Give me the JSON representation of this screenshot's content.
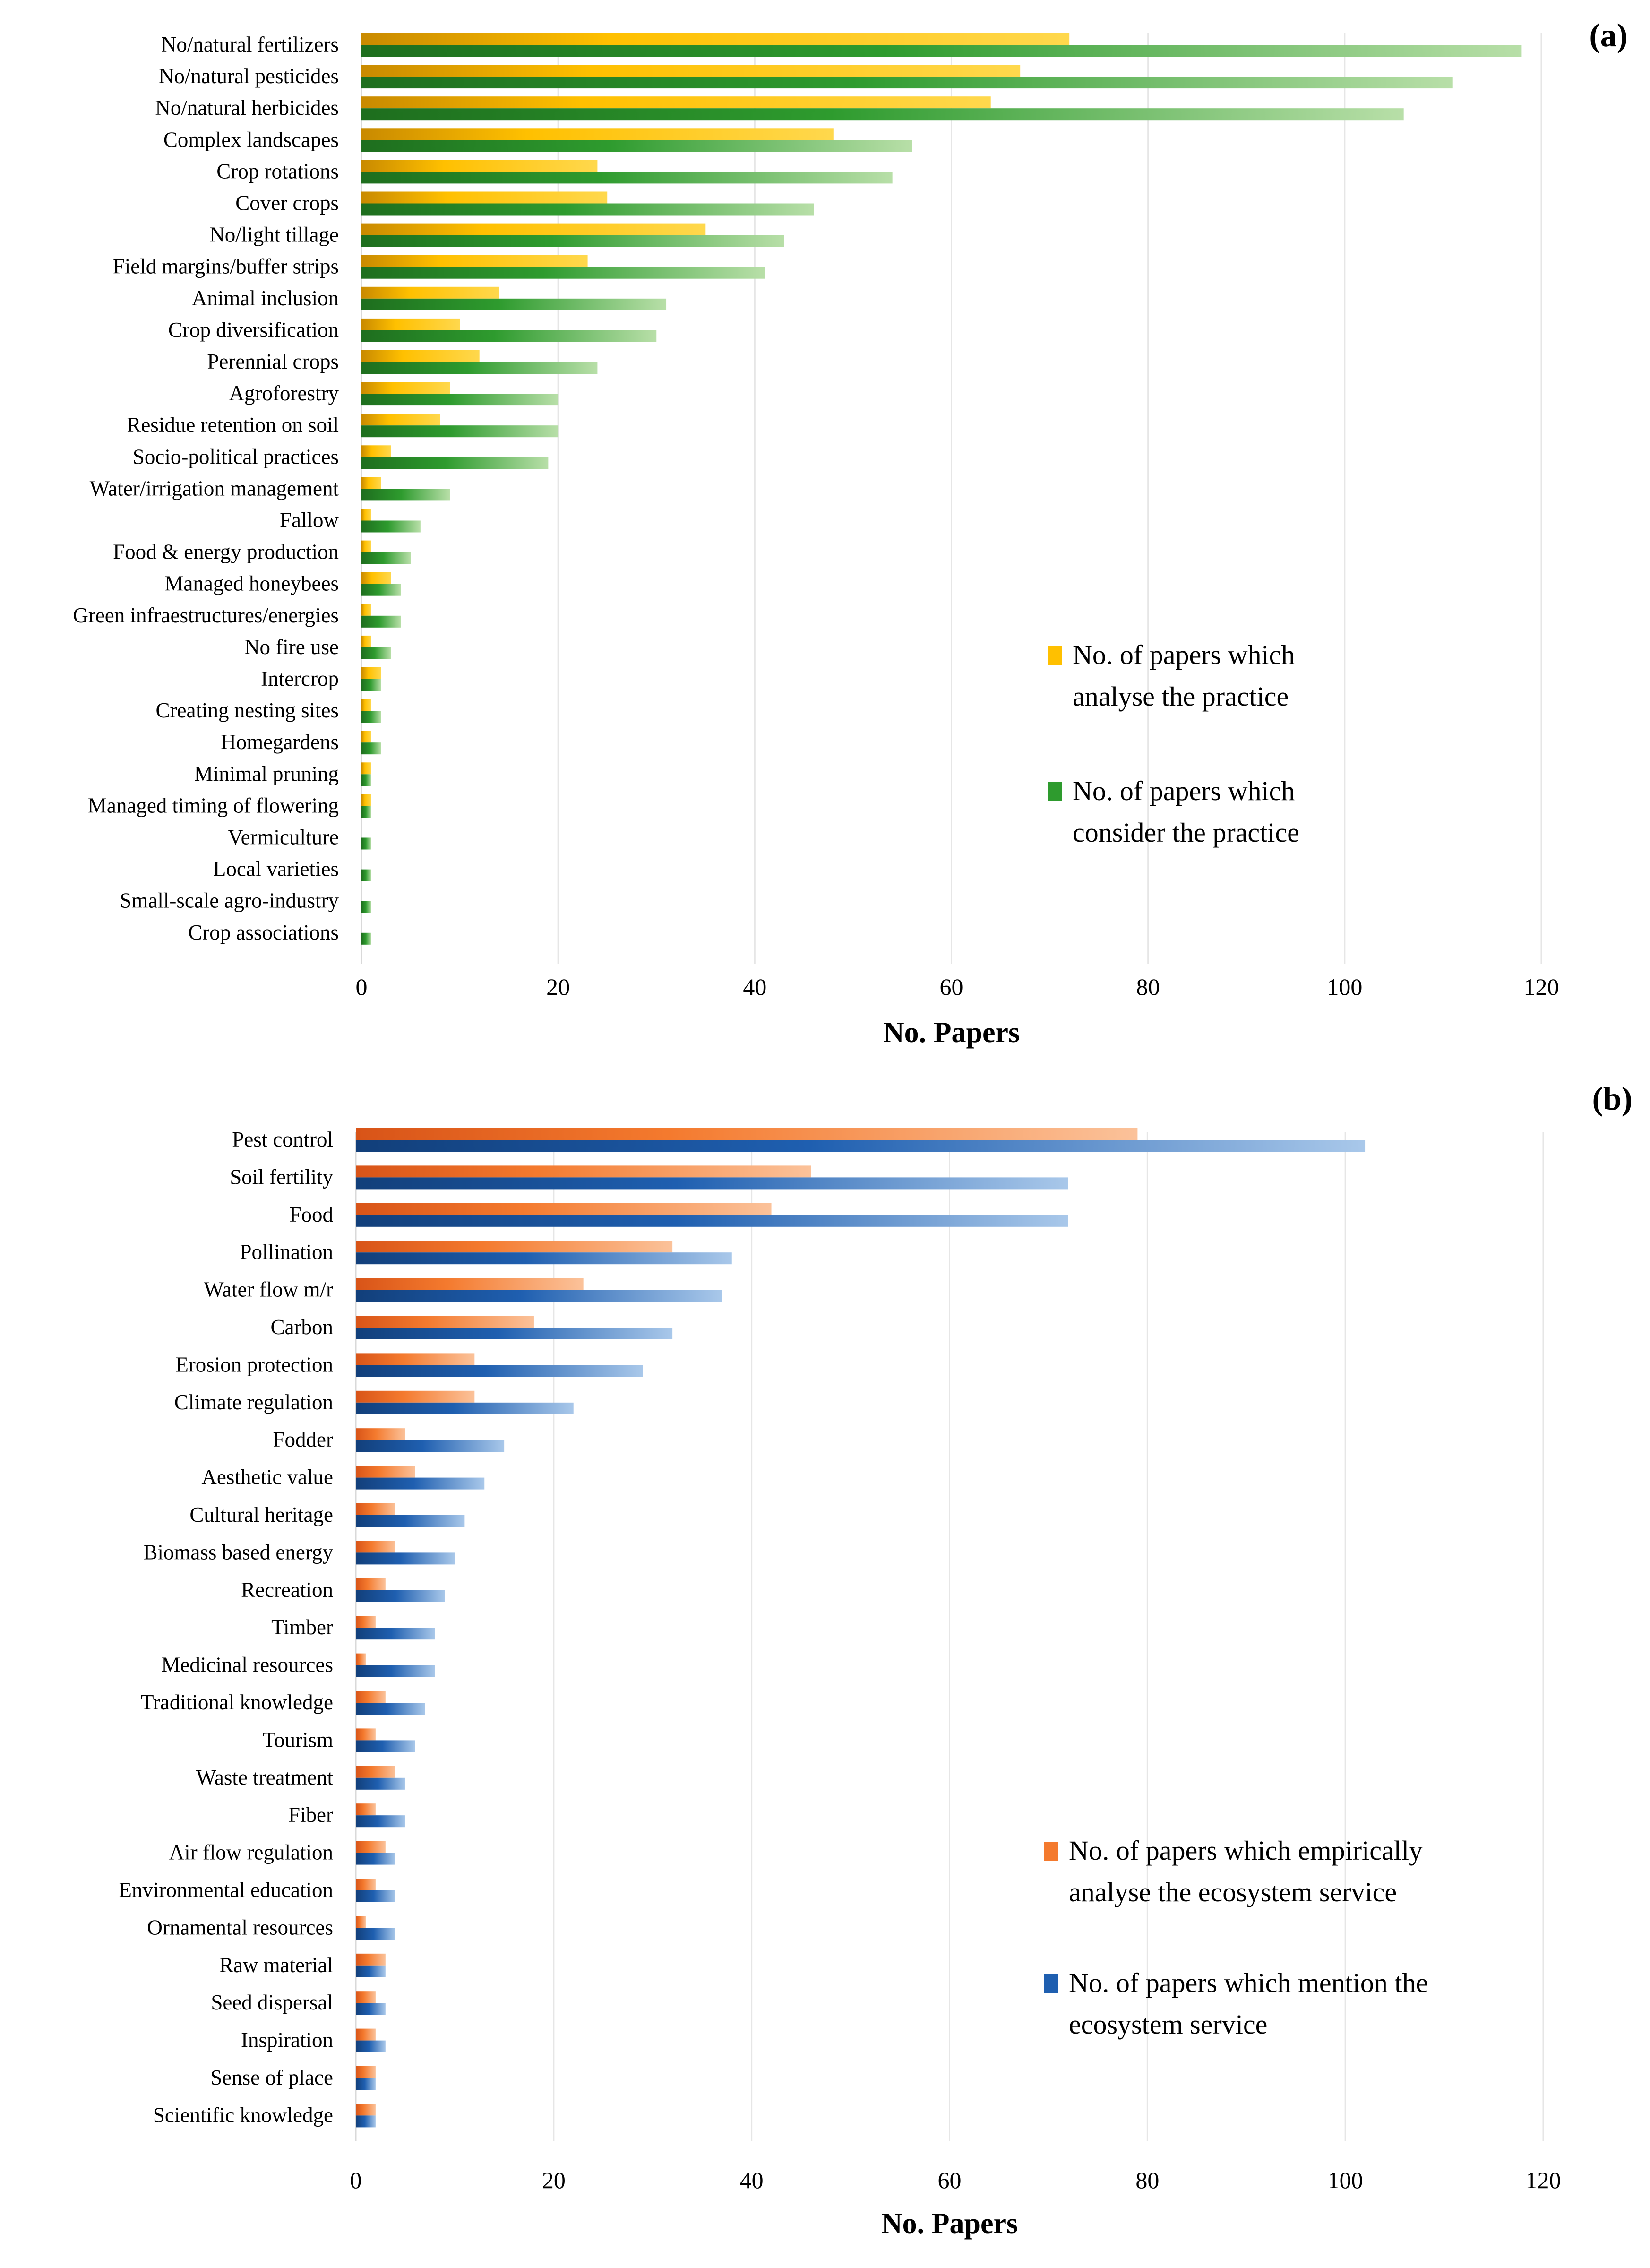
{
  "panels": [
    {
      "panel_label": "(a)",
      "legend": [
        "No. of papers which analyse the practice",
        "No. of papers which consider the practice"
      ],
      "legend_lines": [
        [
          "No. of papers which",
          "analyse the practice"
        ],
        [
          "No. of papers which",
          "consider the practice"
        ]
      ]
    },
    {
      "panel_label": "(b)",
      "legend": [
        "No. of papers which empirically analyse the ecosystem service",
        "No. of papers which mention the ecosystem service"
      ],
      "legend_lines": [
        [
          "No. of papers which empirically",
          "analyse the ecosystem service"
        ],
        [
          "No. of papers which mention the",
          "ecosystem service"
        ]
      ]
    }
  ],
  "colors": {
    "a_series1": "#FFC000",
    "a_series1_dark": "#C98A00",
    "a_series2": "#2E9B2E",
    "a_series2_light": "#B8DFA8",
    "b_series1": "#F47A2E",
    "b_series1_light": "#FBC29A",
    "b_series2": "#1F5FB0",
    "b_series2_light": "#A9C8EA",
    "grid": "#E6E6E6",
    "text": "#000000"
  },
  "chart_data": [
    {
      "type": "bar",
      "orientation": "horizontal",
      "panel": "(a)",
      "title": "",
      "xlabel": "No. Papers",
      "ylabel": "",
      "xlim": [
        0,
        120
      ],
      "xticks": [
        0,
        20,
        40,
        60,
        80,
        100,
        120
      ],
      "grid": true,
      "legend_position": "right",
      "categories": [
        "No/natural fertilizers",
        "No/natural pesticides",
        "No/natural herbicides",
        "Complex landscapes",
        "Crop rotations",
        "Cover crops",
        "No/light tillage",
        "Field margins/buffer strips",
        "Animal inclusion",
        "Crop diversification",
        "Perennial crops",
        "Agroforestry",
        "Residue retention on soil",
        "Socio-political practices",
        "Water/irrigation management",
        "Fallow",
        "Food & energy production",
        "Managed honeybees",
        "Green infraestructures/energies",
        "No fire use",
        "Intercrop",
        "Creating nesting sites",
        "Homegardens",
        "Minimal pruning",
        "Managed timing of flowering",
        "Vermiculture",
        "Local varieties",
        "Small-scale agro-industry",
        "Crop associations"
      ],
      "series": [
        {
          "name": "No. of papers which analyse the practice",
          "values": [
            72,
            67,
            64,
            48,
            24,
            25,
            35,
            23,
            14,
            10,
            12,
            9,
            8,
            3,
            2,
            1,
            1,
            3,
            1,
            1,
            2,
            1,
            1,
            1,
            1,
            0,
            0,
            0,
            0
          ]
        },
        {
          "name": "No. of papers which consider the practice",
          "values": [
            118,
            111,
            106,
            56,
            54,
            46,
            43,
            41,
            31,
            30,
            24,
            20,
            20,
            19,
            9,
            6,
            5,
            4,
            4,
            3,
            2,
            2,
            2,
            1,
            1,
            1,
            1,
            1,
            1
          ]
        }
      ]
    },
    {
      "type": "bar",
      "orientation": "horizontal",
      "panel": "(b)",
      "title": "",
      "xlabel": "No. Papers",
      "ylabel": "",
      "xlim": [
        0,
        120
      ],
      "xticks": [
        0,
        20,
        40,
        60,
        80,
        100,
        120
      ],
      "grid": true,
      "legend_position": "right",
      "categories": [
        "Pest control",
        "Soil fertility",
        "Food",
        "Pollination",
        "Water flow m/r",
        "Carbon",
        "Erosion protection",
        "Climate regulation",
        "Fodder",
        "Aesthetic value",
        "Cultural heritage",
        "Biomass based energy",
        "Recreation",
        "Timber",
        "Medicinal resources",
        "Traditional knowledge",
        "Tourism",
        "Waste treatment",
        "Fiber",
        "Air flow regulation",
        "Environmental education",
        "Ornamental resources",
        "Raw material",
        "Seed dispersal",
        "Inspiration",
        "Sense of place",
        "Scientific knowledge"
      ],
      "series": [
        {
          "name": "No. of papers which empirically analyse the ecosystem service",
          "values": [
            79,
            46,
            42,
            32,
            23,
            18,
            12,
            12,
            5,
            6,
            4,
            4,
            3,
            2,
            1,
            3,
            2,
            4,
            2,
            3,
            2,
            1,
            3,
            2,
            2,
            2,
            2
          ]
        },
        {
          "name": "No. of papers which mention the ecosystem service",
          "values": [
            102,
            72,
            72,
            38,
            37,
            32,
            29,
            22,
            15,
            13,
            11,
            10,
            9,
            8,
            8,
            7,
            6,
            5,
            5,
            4,
            4,
            4,
            3,
            3,
            3,
            2,
            2
          ]
        }
      ]
    }
  ]
}
